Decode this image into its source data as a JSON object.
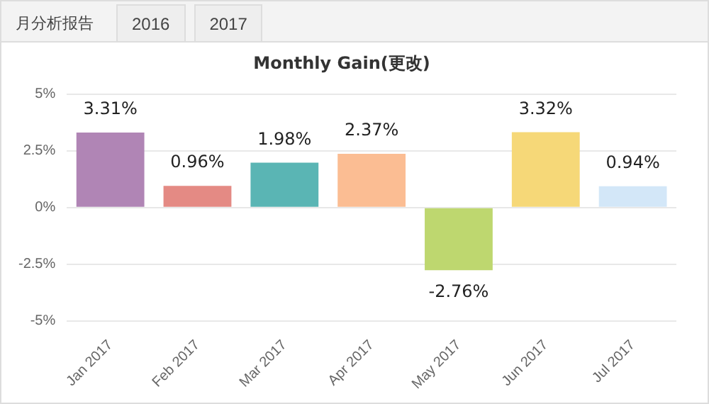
{
  "chart_data": {
    "type": "bar",
    "title": "Monthly Gain(更改)",
    "annotations": [
      "月分析报告",
      "2016",
      "2017"
    ],
    "categories": [
      "Jan 2017",
      "Feb 2017",
      "Mar 2017",
      "Apr 2017",
      "May 2017",
      "Jun 2017",
      "Jul 2017"
    ],
    "values": [
      3.31,
      0.96,
      1.98,
      2.37,
      -2.76,
      3.32,
      0.94
    ],
    "colors": [
      "#b085b5",
      "#e48a84",
      "#5ab5b4",
      "#fbbd93",
      "#bed76f",
      "#f6d878",
      "#d3e7f8"
    ],
    "value_labels": [
      "3.31%",
      "0.96%",
      "1.98%",
      "2.37%",
      "-2.76%",
      "3.32%",
      "0.94%"
    ],
    "ylim": [
      -5,
      5
    ],
    "yticks": [
      {
        "value": -5,
        "label": "-5%"
      },
      {
        "value": -2.5,
        "label": "-2.5%"
      },
      {
        "value": 0,
        "label": "0%"
      },
      {
        "value": 2.5,
        "label": "2.5%"
      },
      {
        "value": 5,
        "label": "5%"
      }
    ],
    "grid": "y",
    "legend": false
  }
}
